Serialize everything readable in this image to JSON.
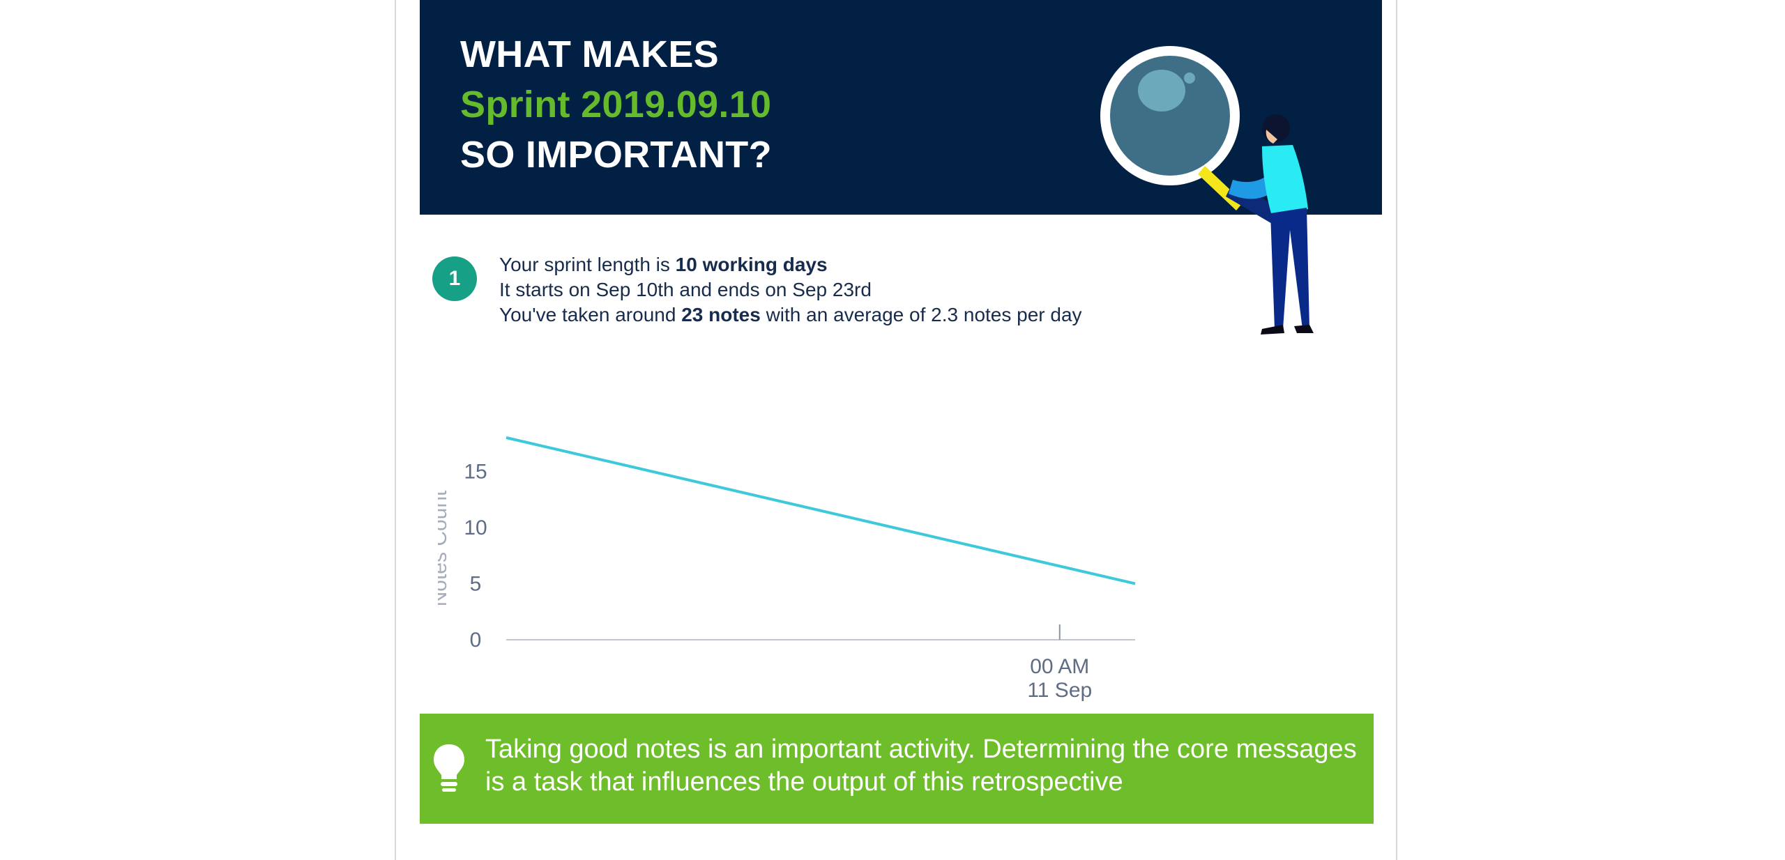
{
  "hero": {
    "line1": "WHAT MAKES",
    "line2": "Sprint 2019.09.10",
    "line3": "SO IMPORTANT?",
    "bg_color": "#022044",
    "accent_color": "#66bb2c",
    "illustration": "magnifying-glass-person-illustration"
  },
  "stats": {
    "step_number": "1",
    "line1_prefix": "Your sprint length is ",
    "line1_bold": "10 working days",
    "line2": "It starts on Sep 10th and ends on Sep 23rd",
    "line3_prefix": "You've taken around ",
    "line3_bold": "23 notes",
    "line3_suffix": " with an average of 2.3 notes per day",
    "badge_color": "#16a085"
  },
  "chart_data": {
    "type": "line",
    "title": "",
    "xlabel": "",
    "ylabel": "Notes Count",
    "y_ticks": [
      0,
      5,
      10,
      15
    ],
    "ylim": [
      0,
      18
    ],
    "x_tick_labels": [
      [
        "00 AM",
        "11 Sep"
      ]
    ],
    "series": [
      {
        "color": "#3dc9d9",
        "points": [
          [
            0.0,
            18.0
          ],
          [
            1.0,
            5.0
          ]
        ]
      }
    ],
    "x_domain": [
      0,
      1
    ],
    "x_tick_positions": [
      0.88
    ],
    "grid": false
  },
  "tip": {
    "icon": "lightbulb-icon",
    "text": "Taking good notes is an important activity. Determining the core messages is a task that influences the output of this retrospective",
    "bg_color": "#6ebd2a"
  }
}
